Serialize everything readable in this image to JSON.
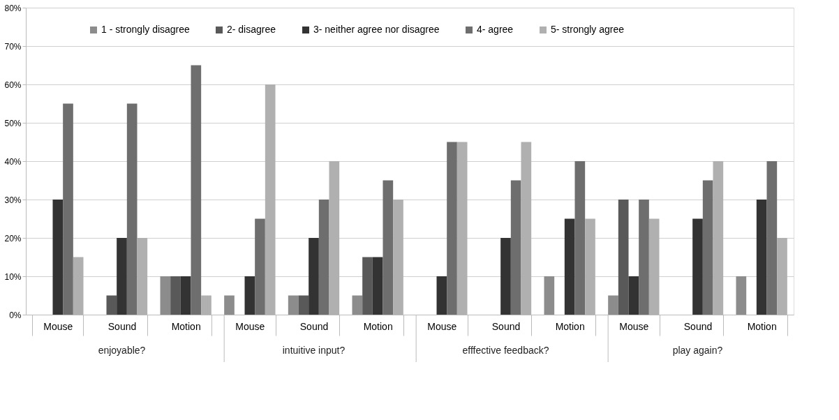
{
  "chart_data": {
    "type": "bar",
    "categories": [
      "Mouse",
      "Sound",
      "Motion",
      "Mouse",
      "Sound",
      "Motion",
      "Mouse",
      "Sound",
      "Motion",
      "Mouse",
      "Sound",
      "Motion"
    ],
    "series": [
      {
        "name": "1 - strongly disagree",
        "color": "#8c8c8c",
        "values": [
          0,
          0,
          10,
          5,
          5,
          5,
          0,
          0,
          10,
          5,
          0,
          10
        ]
      },
      {
        "name": "2- disagree",
        "color": "#595959",
        "values": [
          0,
          5,
          10,
          0,
          5,
          15,
          0,
          0,
          0,
          30,
          0,
          0
        ]
      },
      {
        "name": "3- neither agree nor disagree",
        "color": "#333333",
        "values": [
          30,
          20,
          10,
          10,
          20,
          15,
          10,
          20,
          25,
          10,
          25,
          30
        ]
      },
      {
        "name": "4- agree",
        "color": "#6e6e6e",
        "values": [
          55,
          55,
          65,
          25,
          30,
          35,
          45,
          35,
          40,
          30,
          35,
          40
        ]
      },
      {
        "name": "5- strongly agree",
        "color": "#b0b0b0",
        "values": [
          15,
          20,
          5,
          60,
          40,
          30,
          45,
          45,
          25,
          25,
          40,
          20
        ]
      }
    ],
    "ylim": [
      0,
      80
    ],
    "yticks": [
      {
        "value": 0,
        "label": "0%"
      },
      {
        "value": 10,
        "label": "10%"
      },
      {
        "value": 20,
        "label": "20%"
      },
      {
        "value": 30,
        "label": "30%"
      },
      {
        "value": 40,
        "label": "40%"
      },
      {
        "value": 50,
        "label": "50%"
      },
      {
        "value": 60,
        "label": "60%"
      },
      {
        "value": 70,
        "label": "70%"
      },
      {
        "value": 80,
        "label": "80%"
      }
    ],
    "annotations": [
      "enjoyable?",
      "intuitive input?",
      "efffective feedback?",
      "play again?"
    ],
    "grid": "y",
    "legend": "top"
  }
}
